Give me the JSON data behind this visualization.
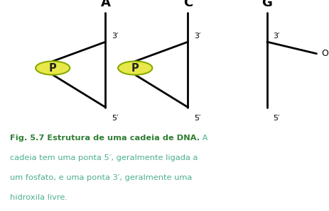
{
  "bg_color": "#ffffff",
  "nucleotide_labels": [
    "A",
    "C",
    "G"
  ],
  "line_color": "#000000",
  "line_width": 2.0,
  "phosphate_color": "#e8e84a",
  "phosphate_edge_color": "#88aa00",
  "phosphate_label": "P",
  "phosphate_label_color": "#222222",
  "label_color_prime": "#000000",
  "label_color_base": "#000000",
  "caption_bold_text": "Fig. 5.7 Estrutura de uma cadeia de DNA.",
  "caption_normal_text": " A\ncadeia tem uma ponta 5′, geralmente ligada a\num fosfato, e uma ponta 3′, geralmente uma\nhidroxila livre.",
  "caption_bold_color": "#2e7d32",
  "caption_normal_color": "#4caf8a",
  "caption_fontsize": 8.2
}
